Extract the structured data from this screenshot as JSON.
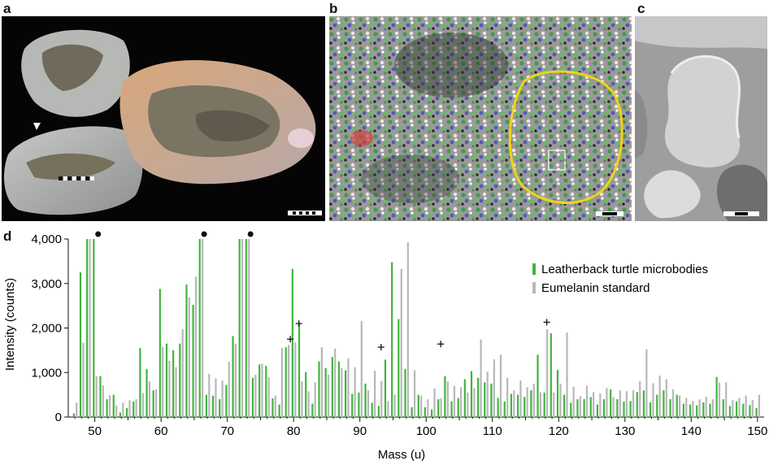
{
  "panels": {
    "a": "a",
    "b": "b",
    "c": "c",
    "d": "d"
  },
  "photos": {
    "a": {
      "subject": "fossil-specimen-photo",
      "background": "#050505"
    },
    "b": {
      "subject": "false-color-ion-image",
      "outline_color": "#f2d21b"
    },
    "c": {
      "subject": "sem-micrograph-grayscale"
    }
  },
  "colors": {
    "leatherback": "#3fb53f",
    "eumelanin": "#b8b8b8",
    "marker": "#111111"
  },
  "chart_data": {
    "type": "bar",
    "xlabel": "Mass (u)",
    "ylabel": "Intensity (counts)",
    "xlim": [
      46,
      151
    ],
    "ylim": [
      0,
      4000
    ],
    "xticks": [
      "50",
      "60",
      "70",
      "80",
      "90",
      "100",
      "110",
      "120",
      "130",
      "140",
      "150"
    ],
    "yticks": [
      "0",
      "1,000",
      "2,000",
      "3,000",
      "4,000"
    ],
    "legend": [
      "Leatherback turtle microbodies",
      "Eumelanin standard"
    ],
    "legend_position": "top-right",
    "x": [
      47,
      48,
      49,
      50,
      51,
      52,
      53,
      54,
      55,
      56,
      57,
      58,
      59,
      60,
      61,
      62,
      63,
      64,
      65,
      66,
      67,
      68,
      69,
      70,
      71,
      72,
      73,
      74,
      75,
      76,
      77,
      78,
      79,
      80,
      81,
      82,
      83,
      84,
      85,
      86,
      87,
      88,
      89,
      90,
      91,
      92,
      93,
      94,
      95,
      96,
      97,
      98,
      99,
      100,
      101,
      102,
      103,
      104,
      105,
      106,
      107,
      108,
      109,
      110,
      111,
      112,
      113,
      114,
      115,
      116,
      117,
      118,
      119,
      120,
      121,
      122,
      123,
      124,
      125,
      126,
      127,
      128,
      129,
      130,
      131,
      132,
      133,
      134,
      135,
      136,
      137,
      138,
      139,
      140,
      141,
      142,
      143,
      144,
      145,
      146,
      147,
      148,
      149,
      150
    ],
    "series": [
      {
        "name": "Leatherback turtle microbodies",
        "values": [
          80,
          3250,
          4000,
          4000,
          920,
          400,
          500,
          100,
          200,
          350,
          1550,
          1080,
          600,
          2880,
          1650,
          1500,
          1650,
          2980,
          2520,
          4000,
          500,
          480,
          400,
          720,
          1820,
          4000,
          4000,
          880,
          1180,
          1150,
          420,
          280,
          1570,
          3330,
          2070,
          1010,
          300,
          1250,
          1100,
          1350,
          1250,
          1050,
          520,
          550,
          750,
          320,
          250,
          1290,
          3480,
          2200,
          1080,
          220,
          500,
          220,
          170,
          400,
          920,
          350,
          430,
          850,
          1030,
          880,
          780,
          750,
          430,
          350,
          520,
          500,
          450,
          600,
          1400,
          550,
          1880,
          1060,
          500,
          320,
          400,
          400,
          450,
          280,
          400,
          620,
          400,
          350,
          360,
          560,
          600,
          330,
          500,
          600,
          400,
          500,
          300,
          280,
          260,
          330,
          300,
          900,
          400,
          250,
          350,
          300,
          270,
          200
        ]
      },
      {
        "name": "Eumelanin standard",
        "values": [
          320,
          1670,
          4000,
          920,
          710,
          490,
          260,
          320,
          380,
          400,
          540,
          800,
          620,
          1570,
          1260,
          1120,
          1970,
          2690,
          3150,
          4000,
          970,
          870,
          820,
          1240,
          1650,
          4000,
          4000,
          950,
          1200,
          900,
          480,
          1550,
          1620,
          1680,
          800,
          580,
          780,
          1570,
          950,
          1540,
          1100,
          1320,
          1120,
          2160,
          600,
          1040,
          810,
          360,
          500,
          3330,
          3930,
          1050,
          480,
          400,
          640,
          420,
          800,
          700,
          670,
          550,
          650,
          1740,
          1020,
          1300,
          1400,
          880,
          600,
          820,
          670,
          750,
          560,
          1970,
          550,
          750,
          1900,
          680,
          470,
          700,
          560,
          530,
          650,
          450,
          600,
          580,
          600,
          810,
          1520,
          760,
          930,
          850,
          620,
          480,
          430,
          360,
          400,
          460,
          400,
          770,
          780,
          380,
          430,
          480,
          380,
          500
        ]
      }
    ],
    "annotations": {
      "dots": [
        50.5,
        66.5,
        73.5
      ],
      "crosses": [
        [
          79.5,
          1750
        ],
        [
          80.8,
          2100
        ],
        [
          93.2,
          1570
        ],
        [
          102.2,
          1640
        ],
        [
          118.2,
          2130
        ]
      ]
    }
  }
}
